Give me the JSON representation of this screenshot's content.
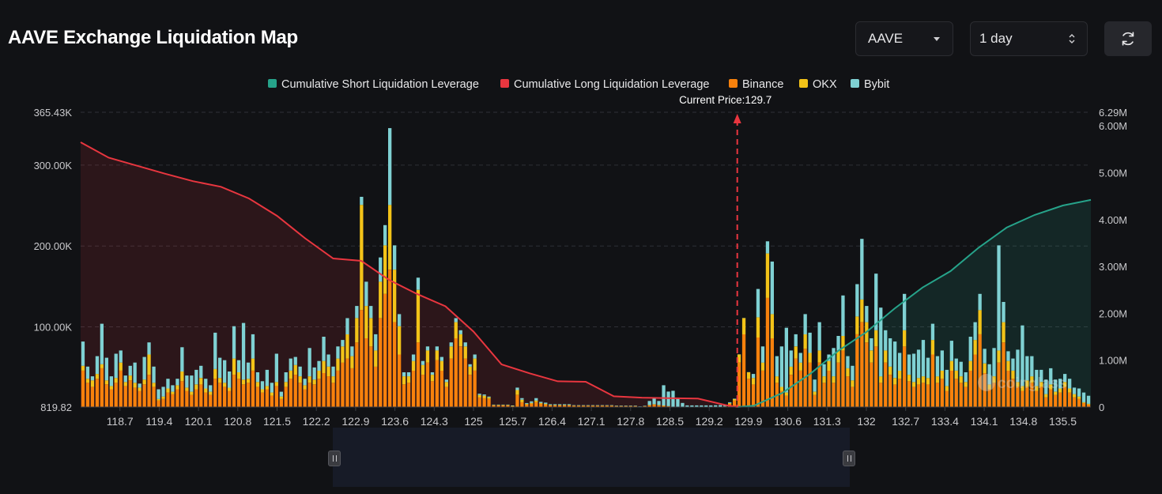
{
  "header": {
    "title": "AAVE Exchange Liquidation Map",
    "coin_value": "AAVE",
    "range_value": "1 day"
  },
  "colors": {
    "binance": "#f7810c",
    "okx": "#f3c318",
    "bybit": "#7fd1d3",
    "short": "#26a38a",
    "long": "#e8363f"
  },
  "chart_data": {
    "type": "bar",
    "legend": [
      {
        "name": "Cumulative Short Liquidation Leverage",
        "color": "#26a38a"
      },
      {
        "name": "Cumulative Long Liquidation Leverage",
        "color": "#e8363f"
      },
      {
        "name": "Binance",
        "color": "#f7810c"
      },
      {
        "name": "OKX",
        "color": "#f3c318"
      },
      {
        "name": "Bybit",
        "color": "#7fd1d3"
      }
    ],
    "current_price_label": "Current Price:129.7",
    "current_price": 129.7,
    "x_ticks": [
      "118.7",
      "119.4",
      "120.1",
      "120.8",
      "121.5",
      "122.2",
      "122.9",
      "123.6",
      "124.3",
      "125",
      "125.7",
      "126.4",
      "127.1",
      "127.8",
      "128.5",
      "129.2",
      "129.9",
      "130.6",
      "131.3",
      "132",
      "132.7",
      "133.4",
      "134.1",
      "134.8",
      "135.5"
    ],
    "y_left_ticks": [
      "365.43K",
      "300.00K",
      "200.00K",
      "100.00K",
      "819.82"
    ],
    "y_right_ticks": [
      "6.29M",
      "6.00M",
      "5.00M",
      "4.00M",
      "3.00M",
      "2.00M",
      "1.00M",
      "0"
    ],
    "y_left_range": [
      819.82,
      365430
    ],
    "y_right_range": [
      0,
      6290000
    ],
    "series": [
      {
        "name": "Binance",
        "values": [
          45000,
          30000,
          25000,
          35000,
          48000,
          28000,
          22000,
          30000,
          45000,
          26000,
          33000,
          24000,
          20000,
          28000,
          40000,
          25000,
          8000,
          10000,
          18000,
          16000,
          22000,
          32000,
          20000,
          15000,
          22000,
          28000,
          18000,
          15000,
          35000,
          30000,
          25000,
          20000,
          40000,
          35000,
          28000,
          30000,
          45000,
          25000,
          18000,
          22000,
          14000,
          26000,
          10000,
          25000,
          35000,
          40000,
          30000,
          22000,
          30000,
          28000,
          35000,
          42000,
          38000,
          30000,
          45000,
          55000,
          60000,
          48000,
          80000,
          120000,
          85000,
          75000,
          50000,
          110000,
          140000,
          170000,
          105000,
          65000,
          28000,
          30000,
          45000,
          80000,
          40000,
          55000,
          32000,
          58000,
          45000,
          25000,
          60000,
          85000,
          75000,
          60000,
          40000,
          45000,
          12000,
          11000,
          10000,
          2000,
          2000,
          2000,
          2000,
          1000,
          15000,
          6000,
          3000,
          4000,
          6000,
          4000,
          3000,
          2000,
          2000,
          2000,
          2000,
          2000,
          1500,
          1500,
          1500,
          1500,
          1500,
          1500,
          1500,
          1500,
          1500,
          1200,
          1200,
          1200,
          1200,
          1200,
          500,
          1000,
          2000,
          3000,
          2000,
          1500,
          1000,
          100,
          100,
          100,
          100,
          100,
          100,
          100,
          100,
          100,
          200,
          300,
          500,
          4000,
          8000,
          55000,
          90000,
          35000,
          28000,
          86000,
          45000,
          135000,
          85000,
          30000,
          20000,
          14000,
          40000,
          60000,
          45000,
          72000,
          55000,
          15000,
          55000,
          30000,
          45000,
          30000,
          55000,
          70000,
          38000,
          25000,
          90000,
          105000,
          80000,
          55000,
          75000,
          30000,
          55000,
          40000,
          28000,
          35000,
          75000,
          32000,
          25000,
          28000,
          30000,
          28000,
          65000,
          30000,
          35000,
          20000,
          45000,
          35000,
          30000,
          25000,
          45000,
          65000,
          90000,
          42000,
          22000,
          30000,
          55000,
          80000,
          45000,
          35000,
          25000,
          20000,
          25000,
          30000,
          20000,
          25000,
          12000,
          22000,
          15000,
          18000,
          25000,
          18000,
          12000,
          10000,
          5000,
          3000
        ]
      },
      {
        "name": "OKX",
        "values": [
          6000,
          5000,
          8000,
          6000,
          5000,
          5000,
          4000,
          6000,
          10000,
          5000,
          6000,
          6000,
          4000,
          6000,
          25000,
          5000,
          2000,
          3000,
          5000,
          3000,
          5000,
          12000,
          4000,
          4000,
          6000,
          8000,
          5000,
          4000,
          12000,
          6000,
          5000,
          4000,
          20000,
          8000,
          6000,
          5000,
          15000,
          6000,
          4000,
          4000,
          4000,
          5000,
          3000,
          6000,
          10000,
          12000,
          8000,
          5000,
          8000,
          6000,
          10000,
          15000,
          12000,
          8000,
          15000,
          20000,
          30000,
          15000,
          30000,
          130000,
          40000,
          35000,
          20000,
          45000,
          60000,
          80000,
          65000,
          35000,
          10000,
          8000,
          12000,
          65000,
          12000,
          15000,
          8000,
          12000,
          12000,
          6000,
          15000,
          20000,
          15000,
          15000,
          10000,
          15000,
          3000,
          3000,
          2000,
          500,
          500,
          500,
          500,
          500,
          6000,
          3000,
          1000,
          1000,
          2000,
          1000,
          1000,
          500,
          500,
          500,
          500,
          500,
          300,
          300,
          300,
          300,
          300,
          300,
          300,
          300,
          300,
          200,
          200,
          200,
          200,
          200,
          100,
          200,
          500,
          500,
          500,
          500,
          200,
          0,
          0,
          0,
          0,
          0,
          0,
          0,
          0,
          0,
          0,
          100,
          200,
          1000,
          2000,
          10000,
          20000,
          8000,
          8000,
          25000,
          10000,
          55000,
          30000,
          8000,
          5000,
          4000,
          10000,
          15000,
          10000,
          18000,
          12000,
          4000,
          15000,
          8000,
          12000,
          8000,
          15000,
          18000,
          10000,
          8000,
          22000,
          28000,
          25000,
          15000,
          20000,
          8000,
          15000,
          10000,
          8000,
          10000,
          20000,
          8000,
          6000,
          8000,
          8000,
          8000,
          18000,
          8000,
          10000,
          6000,
          12000,
          10000,
          8000,
          6000,
          12000,
          18000,
          30000,
          12000,
          6000,
          8000,
          15000,
          25000,
          12000,
          10000,
          6000,
          6000,
          8000,
          8000,
          6000,
          6000,
          4000,
          6000,
          4000,
          5000,
          6000,
          5000,
          4000,
          3000,
          1000,
          1000
        ]
      },
      {
        "name": "Bybit",
        "values": [
          30000,
          15000,
          5000,
          22000,
          50000,
          28000,
          12000,
          30000,
          15000,
          8000,
          12000,
          25000,
          5000,
          28000,
          15000,
          20000,
          12000,
          12000,
          12000,
          8000,
          8000,
          30000,
          15000,
          20000,
          18000,
          15000,
          12000,
          8000,
          45000,
          25000,
          28000,
          20000,
          40000,
          15000,
          70000,
          20000,
          30000,
          12000,
          10000,
          20000,
          12000,
          35000,
          6000,
          12000,
          15000,
          10000,
          12000,
          8000,
          35000,
          15000,
          12000,
          30000,
          15000,
          12000,
          15000,
          8000,
          20000,
          12000,
          15000,
          10000,
          30000,
          15000,
          20000,
          30000,
          25000,
          95000,
          30000,
          15000,
          5000,
          5000,
          8000,
          15000,
          5000,
          5000,
          3000,
          5000,
          5000,
          3000,
          5000,
          5000,
          5000,
          5000,
          3000,
          5000,
          1500,
          1500,
          1000,
          500,
          500,
          500,
          500,
          500,
          3000,
          2000,
          1000,
          2000,
          3000,
          1500,
          1500,
          1000,
          1000,
          1000,
          1000,
          1000,
          500,
          500,
          500,
          500,
          500,
          500,
          500,
          500,
          500,
          500,
          500,
          500,
          500,
          500,
          300,
          500,
          5000,
          8000,
          5000,
          25000,
          18000,
          20000,
          10000,
          5000,
          2000,
          2000,
          2000,
          2000,
          2000,
          2000,
          2000,
          2000,
          2000,
          1000,
          500,
          200,
          200,
          200,
          5000,
          35000,
          20000,
          15000,
          65000,
          25000,
          50000,
          80000,
          20000,
          15000,
          12000,
          25000,
          25000,
          15000,
          35000,
          15000,
          8000,
          35000,
          18000,
          50000,
          15000,
          18000,
          40000,
          75000,
          20000,
          15000,
          70000,
          85000,
          25000,
          35000,
          45000,
          22000,
          45000,
          25000,
          35000,
          35000,
          45000,
          25000,
          20000,
          25000,
          25000,
          20000,
          25000,
          15000,
          18000,
          12000,
          30000,
          22000,
          20000,
          18000,
          25000,
          35000,
          130000,
          25000,
          12000,
          15000,
          40000,
          75000,
          30000,
          25000,
          20000,
          15000,
          18000,
          20000,
          15000,
          12000,
          10000,
          12000,
          8000,
          10000,
          12000,
          10000,
          8000,
          6000,
          5000,
          4000
        ]
      },
      {
        "name": "Cumulative Long Liquidation Leverage",
        "x": [
          118.0,
          118.5,
          119.0,
          119.5,
          120.0,
          120.5,
          121.0,
          121.5,
          122.0,
          122.5,
          123.0,
          123.5,
          124.0,
          124.5,
          125.0,
          125.5,
          126.0,
          126.5,
          127.0,
          127.5,
          128.0,
          128.5,
          129.0,
          129.5,
          129.7
        ],
        "values": [
          5650000,
          5320000,
          5150000,
          4980000,
          4820000,
          4700000,
          4450000,
          4080000,
          3600000,
          3170000,
          3120000,
          2710000,
          2410000,
          2150000,
          1610000,
          910000,
          720000,
          550000,
          540000,
          230000,
          200000,
          190000,
          180000,
          40000,
          0
        ]
      },
      {
        "name": "Cumulative Short Liquidation Leverage",
        "x": [
          129.7,
          130.0,
          130.5,
          131.0,
          131.5,
          132.0,
          132.5,
          133.0,
          133.5,
          134.0,
          134.5,
          135.0,
          135.5,
          136.0
        ],
        "values": [
          0,
          30000,
          300000,
          710000,
          1200000,
          1600000,
          2100000,
          2550000,
          2900000,
          3400000,
          3830000,
          4100000,
          4300000,
          4420000
        ]
      }
    ]
  }
}
